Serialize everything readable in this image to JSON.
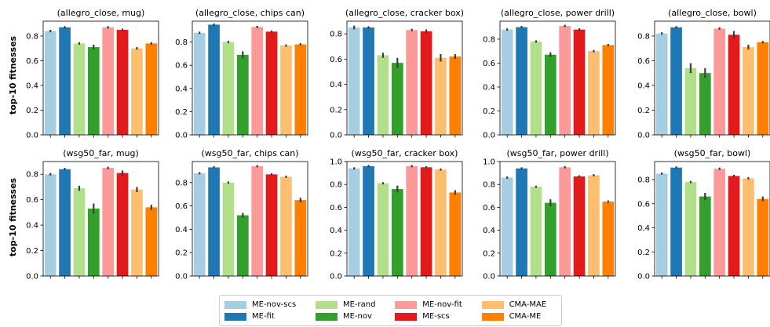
{
  "ylabel": "top-10 fitnesses",
  "series": [
    {
      "name": "ME-nov-scs",
      "color": "#a6cee3"
    },
    {
      "name": "ME-fit",
      "color": "#1f78b4"
    },
    {
      "name": "ME-rand",
      "color": "#b2df8a"
    },
    {
      "name": "ME-nov",
      "color": "#33a02c"
    },
    {
      "name": "ME-nov-fit",
      "color": "#fb9a99"
    },
    {
      "name": "ME-scs",
      "color": "#e31a1c"
    },
    {
      "name": "CMA-MAE",
      "color": "#fdbf6f"
    },
    {
      "name": "CMA-ME",
      "color": "#ff7f00"
    }
  ],
  "chart_data": [
    {
      "type": "bar",
      "title": "(allegro_close, mug)",
      "yticks": [
        "0.0",
        "0.2",
        "0.4",
        "0.6",
        "0.8"
      ],
      "ylim": [
        0,
        0.92
      ],
      "values": [
        0.84,
        0.87,
        0.74,
        0.71,
        0.87,
        0.85,
        0.7,
        0.74
      ],
      "errors": [
        0.01,
        0.01,
        0.01,
        0.02,
        0.01,
        0.01,
        0.01,
        0.01
      ]
    },
    {
      "type": "bar",
      "title": "(allegro_close, chips can)",
      "yticks": [
        "0.0",
        "0.2",
        "0.4",
        "0.6",
        "0.8"
      ],
      "ylim": [
        0,
        0.98
      ],
      "values": [
        0.88,
        0.95,
        0.8,
        0.69,
        0.93,
        0.89,
        0.77,
        0.78
      ],
      "errors": [
        0.01,
        0.01,
        0.01,
        0.03,
        0.01,
        0.01,
        0.01,
        0.01
      ]
    },
    {
      "type": "bar",
      "title": "(allegro_close, cracker box)",
      "yticks": [
        "0.0",
        "0.2",
        "0.4",
        "0.6",
        "0.8"
      ],
      "ylim": [
        0,
        0.9
      ],
      "values": [
        0.85,
        0.85,
        0.63,
        0.57,
        0.83,
        0.82,
        0.61,
        0.62
      ],
      "errors": [
        0.015,
        0.01,
        0.02,
        0.04,
        0.01,
        0.015,
        0.03,
        0.02
      ]
    },
    {
      "type": "bar",
      "title": "(allegro_close, power drill)",
      "yticks": [
        "0.0",
        "0.2",
        "0.4",
        "0.6",
        "0.8"
      ],
      "ylim": [
        0,
        0.95
      ],
      "values": [
        0.88,
        0.9,
        0.78,
        0.67,
        0.91,
        0.88,
        0.7,
        0.75
      ],
      "errors": [
        0.01,
        0.01,
        0.01,
        0.02,
        0.01,
        0.01,
        0.01,
        0.01
      ]
    },
    {
      "type": "bar",
      "title": "(allegro_close, bowl)",
      "yticks": [
        "0.0",
        "0.2",
        "0.4",
        "0.6",
        "0.8"
      ],
      "ylim": [
        0,
        0.92
      ],
      "values": [
        0.82,
        0.87,
        0.54,
        0.5,
        0.86,
        0.81,
        0.71,
        0.75
      ],
      "errors": [
        0.01,
        0.01,
        0.04,
        0.04,
        0.01,
        0.03,
        0.02,
        0.01
      ]
    },
    {
      "type": "bar",
      "title": "(wsg50_far, mug)",
      "yticks": [
        "0.0",
        "0.2",
        "0.4",
        "0.6",
        "0.8"
      ],
      "ylim": [
        0,
        0.9
      ],
      "values": [
        0.8,
        0.84,
        0.69,
        0.53,
        0.85,
        0.81,
        0.68,
        0.54
      ],
      "errors": [
        0.01,
        0.01,
        0.02,
        0.04,
        0.01,
        0.02,
        0.02,
        0.02
      ]
    },
    {
      "type": "bar",
      "title": "(wsg50_far, chips can)",
      "yticks": [
        "0.0",
        "0.2",
        "0.4",
        "0.6",
        "0.8"
      ],
      "ylim": [
        0,
        0.98
      ],
      "values": [
        0.88,
        0.93,
        0.8,
        0.52,
        0.94,
        0.87,
        0.85,
        0.65
      ],
      "errors": [
        0.01,
        0.01,
        0.01,
        0.02,
        0.01,
        0.01,
        0.01,
        0.02
      ]
    },
    {
      "type": "bar",
      "title": "(wsg50_far, cracker box)",
      "yticks": [
        "0.0",
        "0.2",
        "0.4",
        "0.6",
        "0.8",
        "1.0"
      ],
      "ylim": [
        0,
        1.0
      ],
      "values": [
        0.94,
        0.96,
        0.81,
        0.76,
        0.96,
        0.95,
        0.93,
        0.73
      ],
      "errors": [
        0.01,
        0.01,
        0.01,
        0.03,
        0.01,
        0.01,
        0.01,
        0.02
      ]
    },
    {
      "type": "bar",
      "title": "(wsg50_far, power drill)",
      "yticks": [
        "0.0",
        "0.2",
        "0.4",
        "0.6",
        "0.8",
        "1.0"
      ],
      "ylim": [
        0,
        1.0
      ],
      "values": [
        0.86,
        0.94,
        0.78,
        0.64,
        0.95,
        0.87,
        0.88,
        0.65
      ],
      "errors": [
        0.01,
        0.01,
        0.01,
        0.03,
        0.01,
        0.01,
        0.01,
        0.01
      ]
    },
    {
      "type": "bar",
      "title": "(wsg50_far, bowl)",
      "yticks": [
        "0.0",
        "0.2",
        "0.4",
        "0.6",
        "0.8"
      ],
      "ylim": [
        0,
        0.95
      ],
      "values": [
        0.85,
        0.9,
        0.78,
        0.66,
        0.89,
        0.83,
        0.81,
        0.64
      ],
      "errors": [
        0.01,
        0.01,
        0.01,
        0.03,
        0.01,
        0.01,
        0.01,
        0.02
      ]
    }
  ]
}
